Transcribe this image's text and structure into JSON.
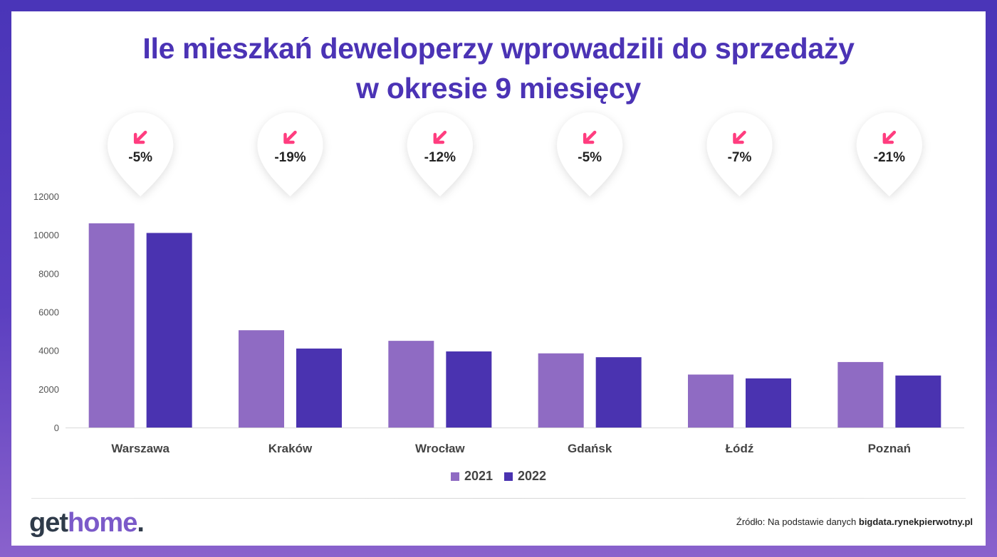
{
  "title": {
    "line1": "Ile mieszkań deweloperzy wprowadzili do sprzedaży",
    "line2": "w okresie 9 miesięcy"
  },
  "colors": {
    "accent": "#4b33b5",
    "series2021": "#8f6bc3",
    "series2022": "#4a33b0",
    "arrow": "#ff3d7f"
  },
  "chart_data": {
    "type": "bar",
    "title": "Ile mieszkań deweloperzy wprowadzili do sprzedaży w okresie 9 miesięcy",
    "xlabel": "",
    "ylabel": "",
    "ylim": [
      0,
      12000
    ],
    "yticks": [
      "0",
      "2000",
      "4000",
      "6000",
      "8000",
      "10000",
      "12000"
    ],
    "categories": [
      "Warszawa",
      "Kraków",
      "Wrocław",
      "Gdańsk",
      "Łódź",
      "Poznań"
    ],
    "series": [
      {
        "name": "2021",
        "values": [
          10600,
          5050,
          4500,
          3850,
          2750,
          3400
        ]
      },
      {
        "name": "2022",
        "values": [
          10100,
          4100,
          3950,
          3650,
          2550,
          2700
        ]
      }
    ],
    "changes": [
      "-5%",
      "-19%",
      "-12%",
      "-5%",
      "-7%",
      "-21%"
    ],
    "change_icon": "arrow-down-left-icon",
    "legend_position": "bottom-center"
  },
  "legend": {
    "items": [
      "2021",
      "2022"
    ]
  },
  "footer": {
    "logo": {
      "part1": "get",
      "part2": "home",
      "part3": "."
    },
    "source_prefix": "Źródło: Na podstawie danych ",
    "source_bold": "bigdata.rynekpierwotny.pl"
  }
}
